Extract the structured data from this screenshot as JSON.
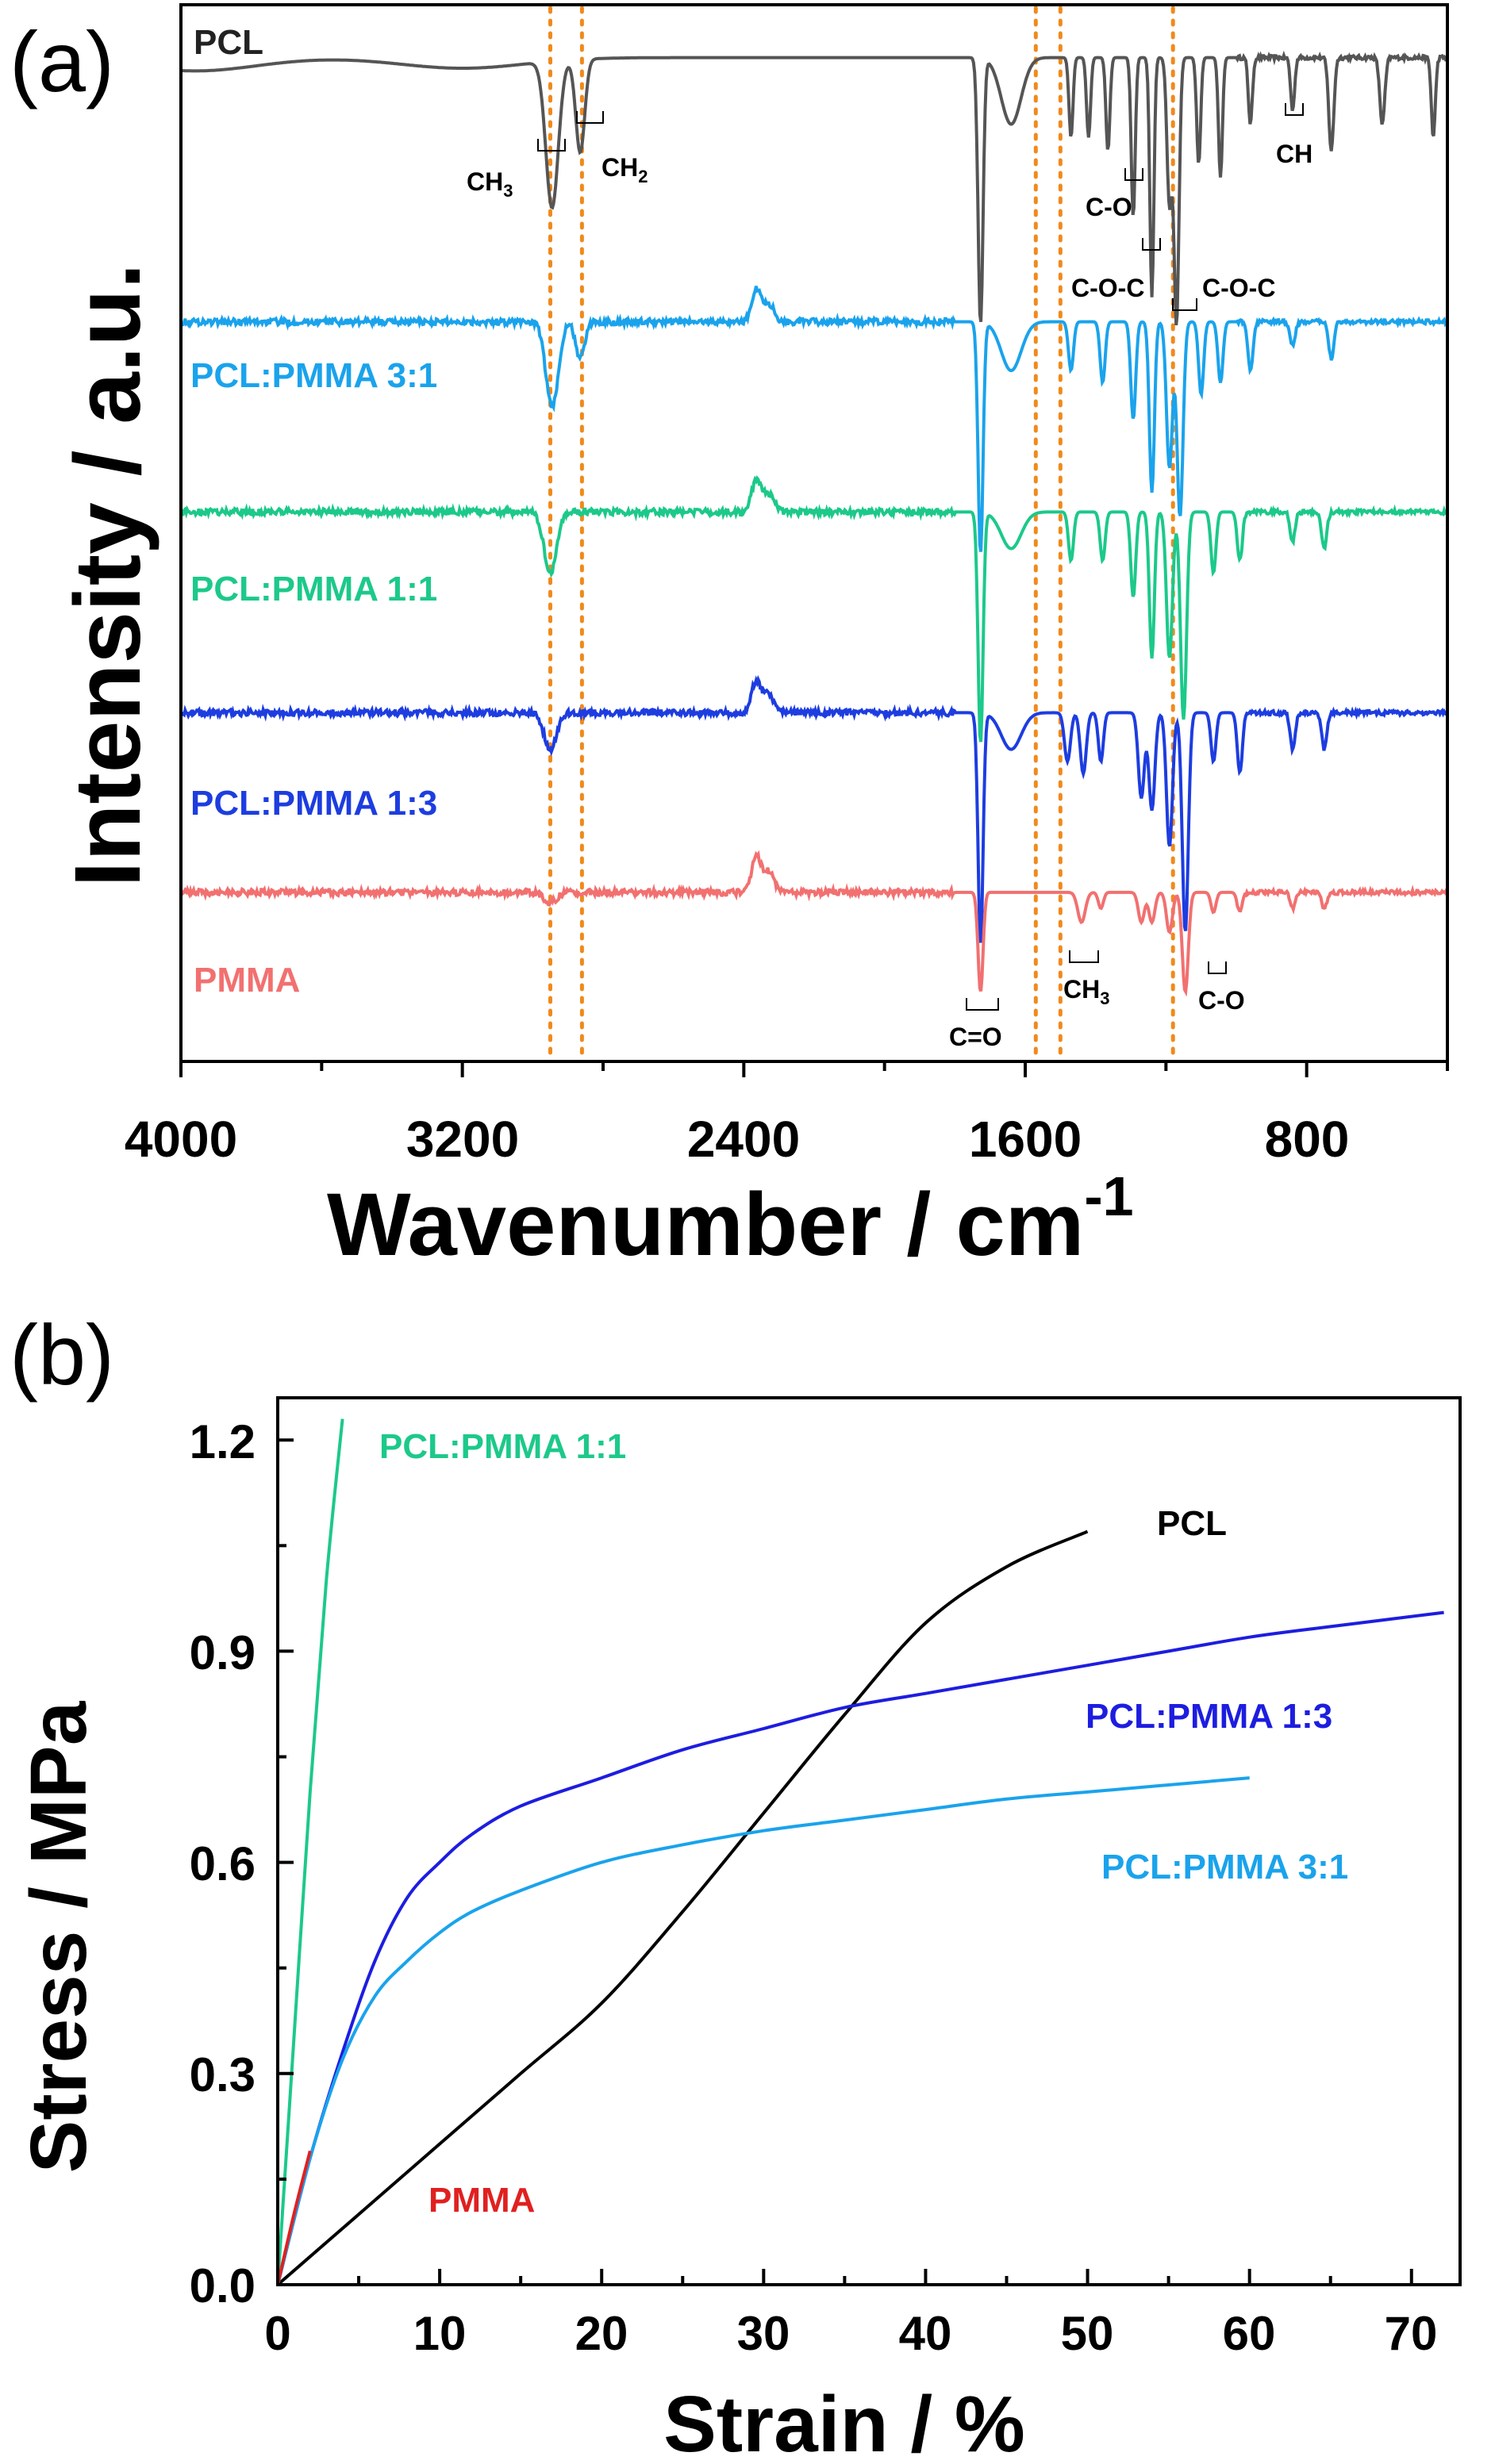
{
  "chart_data": [
    {
      "panel": "(a)",
      "type": "line",
      "xlabel": "Wavenumber / cm",
      "xlabel_sup": "-1",
      "ylabel": "Intensity / a.u.",
      "xlim": [
        4000,
        400
      ],
      "x_reversed": true,
      "ticks": [
        4000,
        3200,
        2400,
        1600,
        800
      ],
      "tick_labels": [
        "4000",
        "3200",
        "2400",
        "1600",
        "800"
      ],
      "reference_lines_cm": [
        2950,
        2860,
        1570,
        1500,
        1180
      ],
      "series": [
        {
          "name": "PCL",
          "label": "PCL",
          "color": "#555555",
          "baseline": 0.95,
          "amp": 0.6,
          "co2": 0,
          "peaks": [
            [
              3960,
              0.05,
              250
            ],
            [
              3200,
              0.04,
              250
            ],
            [
              2945,
              0.55,
              25
            ],
            [
              2865,
              0.35,
              18
            ],
            [
              1727,
              1.0,
              10
            ],
            [
              1640,
              0.25,
              40
            ],
            [
              1470,
              0.3,
              8
            ],
            [
              1420,
              0.3,
              8
            ],
            [
              1365,
              0.35,
              8
            ],
            [
              1293,
              0.6,
              8
            ],
            [
              1240,
              0.9,
              8
            ],
            [
              1190,
              0.55,
              10
            ],
            [
              1170,
              1.0,
              10
            ],
            [
              1107,
              0.4,
              8
            ],
            [
              1045,
              0.45,
              8
            ],
            [
              960,
              0.25,
              8
            ],
            [
              840,
              0.2,
              8
            ],
            [
              730,
              0.35,
              10
            ],
            [
              585,
              0.25,
              10
            ],
            [
              440,
              0.3,
              8
            ]
          ]
        },
        {
          "name": "PCL:PMMA 3:1",
          "label": "PCL:PMMA 3:1",
          "color": "#1aa3ec",
          "baseline": 0.7,
          "amp": 0.55,
          "co2": 0.25,
          "peaks": [
            [
              2945,
              0.35,
              25
            ],
            [
              2865,
              0.15,
              18
            ],
            [
              1727,
              0.95,
              10
            ],
            [
              1640,
              0.2,
              40
            ],
            [
              1470,
              0.2,
              10
            ],
            [
              1380,
              0.25,
              10
            ],
            [
              1293,
              0.4,
              10
            ],
            [
              1240,
              0.7,
              10
            ],
            [
              1190,
              0.6,
              12
            ],
            [
              1160,
              0.8,
              12
            ],
            [
              1100,
              0.3,
              10
            ],
            [
              1045,
              0.25,
              10
            ],
            [
              960,
              0.2,
              10
            ],
            [
              840,
              0.1,
              10
            ],
            [
              730,
              0.15,
              10
            ]
          ]
        },
        {
          "name": "PCL:PMMA 1:1",
          "label": "PCL:PMMA 1:1",
          "color": "#1cc98a",
          "baseline": 0.52,
          "amp": 0.55,
          "co2": 0.25,
          "peaks": [
            [
              2950,
              0.25,
              25
            ],
            [
              1727,
              0.95,
              10
            ],
            [
              1640,
              0.15,
              40
            ],
            [
              1470,
              0.2,
              10
            ],
            [
              1380,
              0.2,
              10
            ],
            [
              1293,
              0.35,
              10
            ],
            [
              1240,
              0.6,
              10
            ],
            [
              1190,
              0.6,
              12
            ],
            [
              1150,
              0.85,
              12
            ],
            [
              1065,
              0.25,
              10
            ],
            [
              990,
              0.2,
              10
            ],
            [
              840,
              0.12,
              10
            ],
            [
              750,
              0.15,
              10
            ]
          ]
        },
        {
          "name": "PCL:PMMA 1:3",
          "label": "PCL:PMMA 1:3",
          "color": "#1d3de0",
          "baseline": 0.33,
          "amp": 0.55,
          "co2": 0.25,
          "peaks": [
            [
              2950,
              0.15,
              25
            ],
            [
              1727,
              0.95,
              10
            ],
            [
              1640,
              0.15,
              40
            ],
            [
              1480,
              0.2,
              12
            ],
            [
              1435,
              0.25,
              12
            ],
            [
              1385,
              0.2,
              10
            ],
            [
              1270,
              0.35,
              12
            ],
            [
              1240,
              0.4,
              12
            ],
            [
              1190,
              0.55,
              12
            ],
            [
              1145,
              0.9,
              12
            ],
            [
              1065,
              0.2,
              10
            ],
            [
              990,
              0.25,
              10
            ],
            [
              840,
              0.15,
              10
            ],
            [
              750,
              0.15,
              10
            ]
          ]
        },
        {
          "name": "PMMA",
          "label": "PMMA",
          "color": "#f27070",
          "baseline": 0.16,
          "amp": 0.45,
          "co2": 0.28,
          "peaks": [
            [
              2950,
              0.05,
              25
            ],
            [
              1727,
              0.5,
              10
            ],
            [
              1440,
              0.15,
              15
            ],
            [
              1385,
              0.08,
              10
            ],
            [
              1270,
              0.15,
              12
            ],
            [
              1240,
              0.15,
              12
            ],
            [
              1190,
              0.2,
              12
            ],
            [
              1145,
              0.5,
              12
            ],
            [
              1065,
              0.1,
              10
            ],
            [
              990,
              0.1,
              10
            ],
            [
              840,
              0.08,
              10
            ],
            [
              750,
              0.08,
              10
            ]
          ]
        }
      ],
      "annotations": [
        "CH",
        "3",
        "CH",
        "2",
        "C-O",
        "C-O-C",
        "C-O-C",
        "CH",
        "C=O",
        "CH",
        "3",
        "C-O"
      ]
    },
    {
      "panel": "(b)",
      "type": "line",
      "xlabel": "Strain / %",
      "ylabel": "Stress / MPa",
      "xlim": [
        0,
        73
      ],
      "ylim": [
        0,
        1.26
      ],
      "x_ticks": [
        0,
        10,
        20,
        30,
        40,
        50,
        60,
        70
      ],
      "x_tick_labels": [
        "0",
        "10",
        "20",
        "30",
        "40",
        "50",
        "60",
        "70"
      ],
      "y_ticks": [
        0.0,
        0.3,
        0.6,
        0.9,
        1.2
      ],
      "y_tick_labels": [
        "0.0",
        "0.3",
        "0.6",
        "0.9",
        "1.2"
      ],
      "series": [
        {
          "name": "PCL:PMMA 1:1",
          "label": "PCL:PMMA 1:1",
          "color": "#1cc98a",
          "x": [
            0,
            1,
            2,
            3,
            4
          ],
          "y": [
            0,
            0.35,
            0.7,
            1.0,
            1.23
          ]
        },
        {
          "name": "PCL",
          "label": "PCL",
          "color": "#000000",
          "x": [
            0,
            5,
            10,
            15,
            20,
            25,
            30,
            35,
            40,
            45,
            50
          ],
          "y": [
            0,
            0.1,
            0.2,
            0.3,
            0.4,
            0.53,
            0.67,
            0.81,
            0.94,
            1.02,
            1.07
          ]
        },
        {
          "name": "PCL:PMMA 1:3",
          "label": "PCL:PMMA  1:3",
          "color": "#1d1de0",
          "x": [
            0,
            2,
            4,
            6,
            8,
            10,
            12,
            15,
            20,
            25,
            30,
            35,
            40,
            45,
            50,
            55,
            60,
            65,
            72
          ],
          "y": [
            0,
            0.18,
            0.33,
            0.46,
            0.55,
            0.6,
            0.64,
            0.68,
            0.72,
            0.76,
            0.79,
            0.82,
            0.84,
            0.86,
            0.88,
            0.9,
            0.92,
            0.935,
            0.955
          ]
        },
        {
          "name": "PCL:PMMA 3:1",
          "label": "PCL:PMMA  3:1",
          "color": "#1aa3ec",
          "x": [
            0,
            2,
            4,
            6,
            8,
            10,
            12,
            15,
            20,
            25,
            30,
            35,
            40,
            45,
            50,
            55,
            60
          ],
          "y": [
            0,
            0.18,
            0.32,
            0.41,
            0.46,
            0.5,
            0.53,
            0.56,
            0.6,
            0.625,
            0.645,
            0.66,
            0.675,
            0.69,
            0.7,
            0.71,
            0.72
          ]
        },
        {
          "name": "PMMA",
          "label": "PMMA",
          "color": "#e02020",
          "x": [
            0,
            1,
            2
          ],
          "y": [
            0,
            0.1,
            0.19
          ]
        }
      ]
    }
  ]
}
